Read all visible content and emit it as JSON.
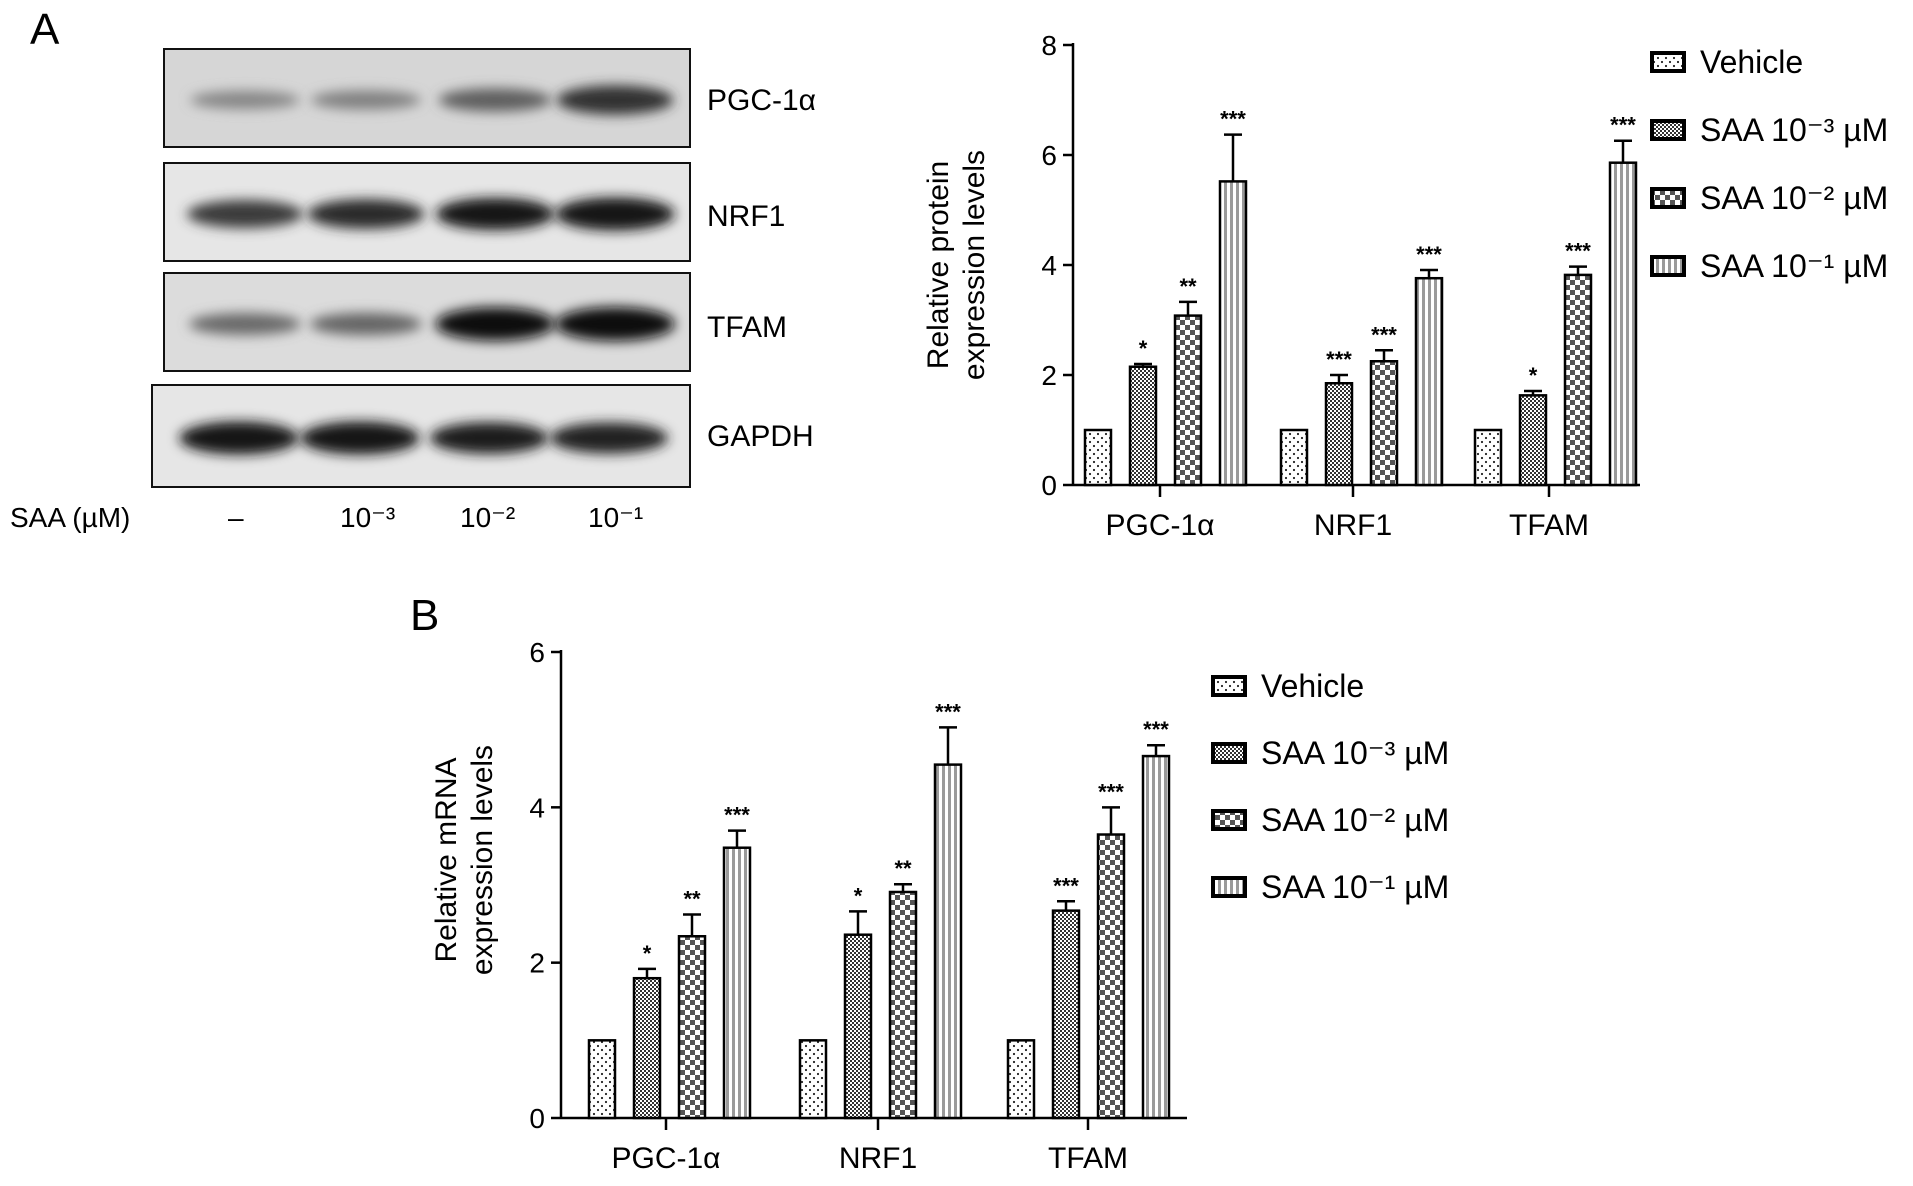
{
  "panels": {
    "a_letter": "A",
    "b_letter": "B"
  },
  "blot": {
    "dose_header": "SAA (µM)",
    "doses": [
      "–",
      "10⁻³",
      "10⁻²",
      "10⁻¹"
    ],
    "rows": [
      {
        "label": "PGC-1α",
        "intensity": [
          0.35,
          0.38,
          0.55,
          0.8
        ]
      },
      {
        "label": "NRF1",
        "intensity": [
          0.75,
          0.82,
          0.92,
          0.96
        ]
      },
      {
        "label": "TFAM",
        "intensity": [
          0.5,
          0.52,
          0.98,
          1.0
        ]
      },
      {
        "label": "GAPDH",
        "intensity": [
          0.96,
          0.96,
          0.9,
          0.88
        ]
      }
    ]
  },
  "legend_entries": [
    "Vehicle",
    "SAA 10⁻³ µM",
    "SAA 10⁻² µM",
    "SAA 10⁻¹ µM"
  ],
  "chart_data": [
    {
      "type": "bar",
      "id": "protein",
      "ylabel": "Relative protein\nexpression levels",
      "xlabel": "",
      "categories": [
        "PGC-1α",
        "NRF1",
        "TFAM"
      ],
      "ylim": [
        0,
        8
      ],
      "yticks": [
        0,
        2,
        4,
        6,
        8
      ],
      "legend_position": "right",
      "series": [
        {
          "name": "Vehicle",
          "values": [
            1.0,
            1.0,
            1.0
          ],
          "errors": [
            0,
            0,
            0
          ],
          "sig": [
            "",
            "",
            ""
          ]
        },
        {
          "name": "SAA 10⁻³ µM",
          "values": [
            2.15,
            1.85,
            1.63
          ],
          "errors": [
            0.05,
            0.15,
            0.08
          ],
          "sig": [
            "*",
            "***",
            "*"
          ]
        },
        {
          "name": "SAA 10⁻² µM",
          "values": [
            3.08,
            2.25,
            3.82
          ],
          "errors": [
            0.25,
            0.2,
            0.15
          ],
          "sig": [
            "**",
            "***",
            "***"
          ]
        },
        {
          "name": "SAA 10⁻¹ µM",
          "values": [
            5.52,
            3.76,
            5.86
          ],
          "errors": [
            0.85,
            0.15,
            0.4
          ],
          "sig": [
            "***",
            "***",
            "***"
          ]
        }
      ]
    },
    {
      "type": "bar",
      "id": "mrna",
      "ylabel": "Relative mRNA\nexpression levels",
      "xlabel": "",
      "categories": [
        "PGC-1α",
        "NRF1",
        "TFAM"
      ],
      "ylim": [
        0,
        6
      ],
      "yticks": [
        0,
        2,
        4,
        6
      ],
      "legend_position": "right",
      "series": [
        {
          "name": "Vehicle",
          "values": [
            1.0,
            1.0,
            1.0
          ],
          "errors": [
            0,
            0,
            0
          ],
          "sig": [
            "",
            "",
            ""
          ]
        },
        {
          "name": "SAA 10⁻³ µM",
          "values": [
            1.8,
            2.36,
            2.67
          ],
          "errors": [
            0.12,
            0.3,
            0.12
          ],
          "sig": [
            "*",
            "*",
            "***"
          ]
        },
        {
          "name": "SAA 10⁻² µM",
          "values": [
            2.34,
            2.91,
            3.65
          ],
          "errors": [
            0.28,
            0.1,
            0.35
          ],
          "sig": [
            "**",
            "**",
            "***"
          ]
        },
        {
          "name": "SAA 10⁻¹ µM",
          "values": [
            3.48,
            4.55,
            4.66
          ],
          "errors": [
            0.22,
            0.48,
            0.14
          ],
          "sig": [
            "***",
            "***",
            "***"
          ]
        }
      ]
    }
  ]
}
